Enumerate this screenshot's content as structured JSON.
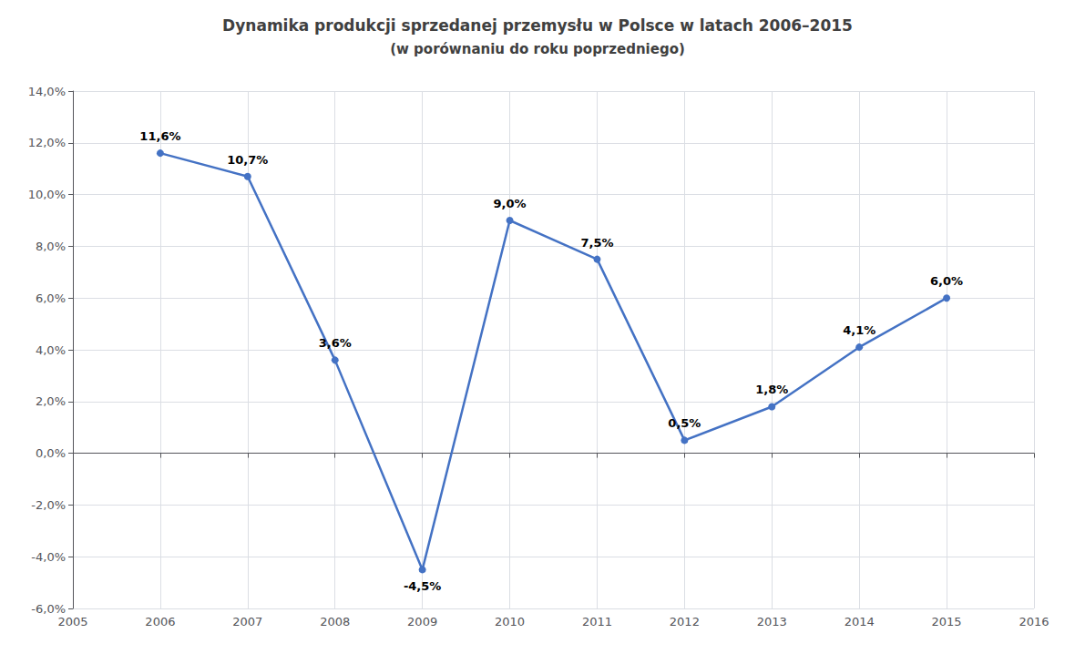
{
  "chart_data": {
    "type": "line",
    "title": "Dynamika produkcji sprzedanej przemysłu w Polsce w latach 2006–2015",
    "subtitle": "(w porównaniu do roku poprzedniego)",
    "x": [
      2006,
      2007,
      2008,
      2009,
      2010,
      2011,
      2012,
      2013,
      2014,
      2015
    ],
    "values": [
      11.6,
      10.7,
      3.6,
      -4.5,
      9.0,
      7.5,
      0.5,
      1.8,
      4.1,
      6.0
    ],
    "value_labels": [
      "11,6%",
      "10,7%",
      "3,6%",
      "-4,5%",
      "9,0%",
      "7,5%",
      "0,5%",
      "1,8%",
      "4,1%",
      "6,0%"
    ],
    "data_labels": true,
    "color": "#4472C4",
    "marker": "circle",
    "xlim": [
      2005,
      2016
    ],
    "xticks": [
      2005,
      2006,
      2007,
      2008,
      2009,
      2010,
      2011,
      2012,
      2013,
      2014,
      2015,
      2016
    ],
    "ylim": [
      -6.0,
      14.0
    ],
    "yticks": [
      {
        "value": -6.0,
        "label": "-6,0%"
      },
      {
        "value": -4.0,
        "label": "-4,0%"
      },
      {
        "value": -2.0,
        "label": "-2,0%"
      },
      {
        "value": 0.0,
        "label": "0,0%"
      },
      {
        "value": 2.0,
        "label": "2,0%"
      },
      {
        "value": 4.0,
        "label": "4,0%"
      },
      {
        "value": 6.0,
        "label": "6,0%"
      },
      {
        "value": 8.0,
        "label": "8,0%"
      },
      {
        "value": 10.0,
        "label": "10,0%"
      },
      {
        "value": 12.0,
        "label": "12,0%"
      },
      {
        "value": 14.0,
        "label": "14,0%"
      }
    ],
    "grid": true
  }
}
